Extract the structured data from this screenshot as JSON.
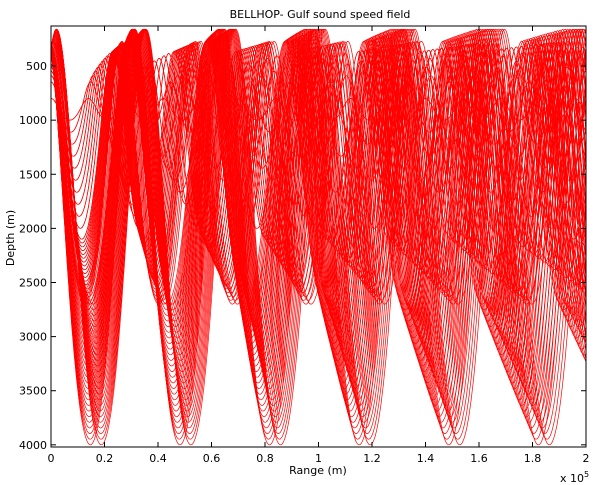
{
  "chart_data": {
    "type": "line",
    "title": "BELLHOP- Gulf sound speed field",
    "xlabel": "Range (m)",
    "ylabel": "Depth (m)",
    "x_multiplier_label": "x 10",
    "x_multiplier_exponent": "5",
    "xlim": [
      0,
      200000
    ],
    "ylim": [
      4020,
      130
    ],
    "y_reversed": true,
    "x_ticks": [
      0,
      20000,
      40000,
      60000,
      80000,
      100000,
      120000,
      140000,
      160000,
      180000,
      200000
    ],
    "x_tick_labels": [
      "0",
      "0.2",
      "0.4",
      "0.6",
      "0.8",
      "1",
      "1.2",
      "1.4",
      "1.6",
      "1.8",
      "2"
    ],
    "y_ticks": [
      500,
      1000,
      1500,
      2000,
      2500,
      3000,
      3500,
      4000
    ],
    "y_tick_labels": [
      "500",
      "1000",
      "1500",
      "2000",
      "2500",
      "3000",
      "3500",
      "4000"
    ],
    "grid": false,
    "legend": "none",
    "series_color": "#ff0000",
    "source_depth": 300,
    "ray_fan": {
      "deep_rays": {
        "count": 26,
        "turn_depth_min": 2700,
        "turn_depth_max": 4000,
        "cycle_range_min": 29500,
        "cycle_range_max": 33500
      },
      "mid_rays": {
        "count": 18,
        "turn_depth_min": 2100,
        "turn_depth_max": 2700,
        "cycle_range_min": 23000,
        "cycle_range_max": 27500
      },
      "shallow_rays": {
        "count": 10,
        "turn_depth_min": 1000,
        "turn_depth_max": 2000,
        "cycle_range_min": 14000,
        "cycle_range_max": 22000
      }
    }
  }
}
